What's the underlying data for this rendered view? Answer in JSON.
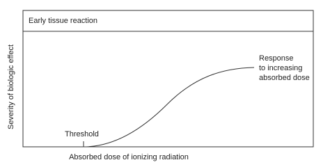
{
  "header": {
    "title": "Early tissue reaction"
  },
  "axes": {
    "y_label": "Severity of biologic effect",
    "x_label": "Absorbed dose of ionizing radiation"
  },
  "annotations": {
    "threshold": "Threshold",
    "response": [
      "Response",
      "to increasing",
      "absorbed dose"
    ]
  }
}
